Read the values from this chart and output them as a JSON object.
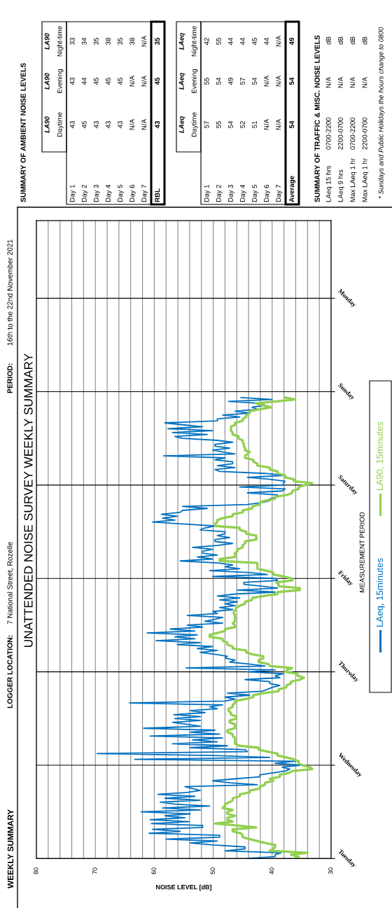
{
  "chart_data": [
    {
      "type": "line",
      "orientation": "horizontal",
      "title": "UNATTENDED NOISE SURVEY WEEKLY SUMMARY",
      "xlabel": "NOISE LEVEL [dB]",
      "ylabel": "MEASUREMENT PERIOD",
      "annotations": [
        "WEEKLY SUMMARY",
        "LOGGER LOCATION:",
        "7 National Street, Rozelle",
        "PERIOD:",
        "16th to the 22nd November 2021"
      ],
      "xlim": [
        80,
        30
      ],
      "xticks": [
        80,
        {
          "value": 78,
          "label": null
        },
        {
          "value": 76,
          "label": null
        },
        {
          "value": 74,
          "label": null
        },
        {
          "value": 72,
          "label": null
        },
        70,
        {
          "value": 68,
          "label": null
        },
        {
          "value": 66,
          "label": null
        },
        {
          "value": 64,
          "label": null
        },
        {
          "value": 62,
          "label": null
        },
        60,
        {
          "value": 58,
          "label": null
        },
        {
          "value": 56,
          "label": null
        },
        {
          "value": 54,
          "label": null
        },
        {
          "value": 52,
          "label": null
        },
        50,
        {
          "value": 48,
          "label": null
        },
        {
          "value": 46,
          "label": null
        },
        {
          "value": 44,
          "label": null
        },
        {
          "value": 42,
          "label": null
        },
        40,
        {
          "value": 38,
          "label": null
        },
        {
          "value": 36,
          "label": null
        },
        {
          "value": 34,
          "label": null
        },
        {
          "value": 32,
          "label": null
        },
        30
      ],
      "categories": [
        null,
        null,
        null,
        null,
        null,
        null,
        null,
        null,
        null,
        null,
        null,
        null,
        null,
        null,
        null,
        null,
        null,
        null,
        null,
        null,
        null,
        null,
        null,
        null,
        null,
        null,
        null,
        null,
        null,
        null,
        null,
        null,
        null,
        null,
        null,
        null,
        null,
        null,
        null,
        null,
        "Monday",
        null,
        null,
        null,
        null,
        null,
        null,
        null,
        null,
        null,
        null,
        null,
        null,
        null,
        null,
        null,
        null,
        null,
        null,
        null,
        null,
        null,
        null,
        null,
        null,
        null,
        null,
        null,
        null,
        null,
        null,
        null,
        null,
        null,
        null,
        null,
        null,
        null,
        null,
        null,
        null,
        null,
        null,
        null,
        null,
        null,
        null,
        null,
        "Sunday",
        null,
        null,
        null,
        null,
        null,
        null,
        null,
        null,
        null,
        null,
        null,
        null,
        null,
        null,
        null,
        null,
        null,
        null,
        null,
        null,
        null,
        null,
        null,
        null,
        null,
        null,
        null,
        null,
        null,
        null,
        null,
        null,
        null,
        null,
        null,
        null,
        null,
        null,
        null,
        null,
        null,
        null,
        null,
        null,
        null,
        null,
        null,
        "Saturday",
        null,
        null,
        null,
        null,
        null,
        null,
        null,
        null,
        null,
        null,
        null,
        null,
        null,
        null,
        null,
        null,
        null,
        null,
        null,
        null,
        null,
        null,
        null,
        null,
        null,
        null,
        null,
        null,
        null,
        null,
        null,
        null,
        null,
        null,
        null,
        null,
        null,
        null,
        null,
        null,
        null,
        null,
        null,
        null,
        null,
        null,
        null,
        "Friday",
        null,
        null,
        null,
        null,
        null,
        null,
        null,
        null,
        null,
        null,
        null,
        null,
        null,
        null,
        null,
        null,
        null,
        null,
        null,
        null,
        null,
        null,
        null,
        null,
        null,
        null,
        null,
        null,
        null,
        null,
        null,
        null,
        null,
        null,
        null,
        null,
        null,
        null,
        null,
        null,
        null,
        null,
        null,
        null,
        null,
        null,
        null,
        "Thursday",
        null,
        null,
        null,
        null,
        null,
        null,
        null,
        null,
        null,
        null,
        null,
        null,
        null,
        null,
        null,
        null,
        null,
        null,
        null,
        null,
        null,
        null,
        null,
        null,
        null,
        null,
        null,
        null,
        null,
        null,
        null,
        null,
        null,
        null,
        null,
        null,
        null,
        null,
        null,
        null,
        null,
        null,
        null,
        null,
        null,
        null,
        null,
        "Wednesday",
        null,
        null,
        null,
        null,
        null,
        null,
        null,
        null,
        null,
        null,
        null,
        null,
        null,
        null,
        null,
        null,
        null,
        null,
        null,
        null,
        null,
        null,
        null,
        null,
        null,
        null,
        null,
        null,
        null,
        null,
        null,
        null,
        null,
        null,
        null,
        null,
        null,
        null,
        null,
        null,
        null,
        null,
        null,
        null,
        null,
        null,
        null,
        "Tuesday"
      ],
      "grid": true,
      "legend": "right",
      "series": [
        {
          "name": "LAeq, 15minutes",
          "color": "#0070c0",
          "values": [
            null,
            null,
            null,
            null,
            null,
            null,
            null,
            null,
            null,
            null,
            null,
            null,
            null,
            null,
            null,
            null,
            null,
            null,
            null,
            null,
            null,
            null,
            null,
            null,
            null,
            null,
            null,
            null,
            null,
            null,
            null,
            null,
            null,
            null,
            null,
            null,
            null,
            null,
            null,
            null,
            null,
            null,
            null,
            null,
            null,
            null,
            null,
            null,
            null,
            null,
            null,
            null,
            null,
            null,
            null,
            null,
            null,
            null,
            null,
            null,
            null,
            null,
            null,
            null,
            null,
            null,
            null,
            null,
            null,
            null,
            null,
            null,
            null,
            null,
            null,
            null,
            null,
            null,
            null,
            null,
            null,
            null,
            null,
            null,
            null,
            null,
            null,
            null,
            null,
            null,
            null,
            45.3,
            40.0,
            47.4,
            42.1,
            41.2,
            43.4,
            42.5,
            46.3,
            43.8,
            48.4,
            45.5,
            49.3,
            49.3,
            58.2,
            55.2,
            51.8,
            57.7,
            50.1,
            56.9,
            51.0,
            56.5,
            55.2,
            49.3,
            46.7,
            49.7,
            49.7,
            47.2,
            50.1,
            48.4,
            46.3,
            58.4,
            48.0,
            49.7,
            46.7,
            46.7,
            49.3,
            46.3,
            49.7,
            48.9,
            41.2,
            37.8,
            44.2,
            40.4,
            37.8,
            38.1,
            38.1,
            45.5,
            37.8,
            38.3,
            44.2,
            39.1,
            39.1,
            40.4,
            40.4,
            41.7,
            44.2,
            55.2,
            51.0,
            55.2,
            55.6,
            58.8,
            56.1,
            58.6,
            56.5,
            60.3,
            55.2,
            49.7,
            51.4,
            52.2,
            48.0,
            48.0,
            49.3,
            47.2,
            49.7,
            49.7,
            46.7,
            49.3,
            53.5,
            50.1,
            51.8,
            51.8,
            49.3,
            52.7,
            50.1,
            55.6,
            49.3,
            46.7,
            48.0,
            45.5,
            50.6,
            43.8,
            40.8,
            50.1,
            39.5,
            39.1,
            44.8,
            44.8,
            41.7,
            39.1,
            45.9,
            39.5,
            46.3,
            49.3,
            45.5,
            48.9,
            45.9,
            48.0,
            46.3,
            48.9,
            46.7,
            50.1,
            49.3,
            54.4,
            48.4,
            49.7,
            51.4,
            48.4,
            54.4,
            51.8,
            57.3,
            53.1,
            61.2,
            52.7,
            56.5,
            53.1,
            59.7,
            52.2,
            56.1,
            50.1,
            52.7,
            49.3,
            52.2,
            49.7,
            47.6,
            48.0,
            46.3,
            47.2,
            43.8,
            41.2,
            54.6,
            39.5,
            44.2,
            38.1,
            39.5,
            38.7,
            44.6,
            40.4,
            40.4,
            38.7,
            40.0,
            40.8,
            41.7,
            47.6,
            43.8,
            48.0,
            46.3,
            48.0,
            64.2,
            48.4,
            50.6,
            49.3,
            53.9,
            51.4,
            56.7,
            52.2,
            56.5,
            52.2,
            56.9,
            54.4,
            52.2,
            61.8,
            49.7,
            53.9,
            48.9,
            60.7,
            48.4,
            53.5,
            49.3,
            56.9,
            47.6,
            53.9,
            44.6,
            44.2,
            69.7,
            50.1,
            40.4,
            63.3,
            36.1,
            39.5,
            35.3,
            38.3,
            37.0,
            37.8,
            40.0,
            42.1,
            42.1,
            46.3,
            50.1,
            47.2,
            42.5,
            54.8,
            53.5,
            52.2,
            54.4,
            59.4,
            53.1,
            58.2,
            52.2,
            59.0,
            56.5,
            50.6,
            58.6,
            52.2,
            62.2,
            53.9,
            58.2,
            54.8,
            60.7,
            54.1,
            60.5,
            51.8,
            51.8,
            60.3,
            55.6,
            60.9,
            48.9,
            48.9,
            58.0,
            49.3,
            53.9,
            50.1,
            44.6,
            44.6,
            48.0,
            38.5,
            39.5,
            39.5,
            44.4
          ]
        },
        {
          "name": "LA90, 15minutes",
          "color": "#92d050",
          "values": [
            null,
            null,
            null,
            null,
            null,
            null,
            null,
            null,
            null,
            null,
            null,
            null,
            null,
            null,
            null,
            null,
            null,
            null,
            null,
            null,
            null,
            null,
            null,
            null,
            null,
            null,
            null,
            null,
            null,
            null,
            null,
            null,
            null,
            null,
            null,
            null,
            null,
            null,
            null,
            null,
            null,
            null,
            null,
            null,
            null,
            null,
            null,
            null,
            null,
            null,
            null,
            null,
            null,
            null,
            null,
            null,
            null,
            null,
            null,
            null,
            null,
            null,
            null,
            null,
            null,
            null,
            null,
            null,
            null,
            null,
            null,
            null,
            null,
            null,
            null,
            null,
            null,
            null,
            null,
            null,
            null,
            null,
            null,
            null,
            null,
            null,
            null,
            null,
            null,
            null,
            null,
            37.8,
            36.1,
            39.3,
            42.7,
            41.5,
            40.2,
            42.1,
            43.8,
            43.8,
            44.4,
            44.4,
            45.0,
            45.0,
            46.3,
            46.3,
            47.0,
            47.0,
            47.0,
            46.7,
            46.7,
            45.7,
            45.7,
            45.0,
            45.0,
            44.8,
            44.8,
            44.6,
            44.6,
            43.8,
            44.2,
            44.6,
            44.6,
            43.2,
            43.2,
            42.5,
            42.5,
            40.4,
            40.4,
            39.1,
            39.1,
            37.8,
            37.8,
            36.3,
            36.3,
            33.2,
            34.4,
            35.5,
            35.5,
            36.6,
            36.6,
            37.4,
            39.5,
            39.5,
            41.2,
            42.1,
            42.1,
            43.4,
            43.4,
            45.0,
            45.0,
            46.7,
            46.7,
            48.4,
            49.3,
            49.3,
            49.7,
            49.7,
            45.5,
            45.5,
            44.4,
            44.4,
            42.7,
            42.7,
            42.7,
            44.6,
            44.6,
            45.0,
            45.0,
            45.9,
            45.9,
            46.3,
            46.3,
            46.3,
            48.9,
            48.9,
            42.5,
            42.5,
            42.5,
            42.5,
            41.0,
            39.8,
            39.8,
            38.1,
            36.6,
            36.6,
            39.3,
            38.9,
            38.9,
            35.3,
            35.3,
            39.1,
            39.1,
            41.5,
            43.4,
            43.4,
            44.6,
            44.6,
            45.5,
            46.1,
            46.1,
            46.5,
            46.5,
            46.3,
            46.3,
            46.3,
            46.3,
            46.7,
            46.3,
            46.3,
            48.0,
            48.0,
            49.3,
            50.6,
            50.6,
            48.4,
            48.4,
            47.6,
            47.6,
            46.7,
            46.7,
            44.4,
            44.4,
            43.4,
            41.5,
            41.5,
            42.3,
            42.3,
            40.6,
            40.4,
            36.6,
            37.4,
            37.8,
            35.7,
            35.7,
            34.6,
            35.3,
            36.8,
            36.8,
            37.6,
            37.6,
            38.9,
            38.9,
            41.5,
            43.2,
            43.2,
            44.6,
            46.3,
            46.3,
            46.7,
            46.7,
            47.4,
            47.4,
            47.0,
            47.0,
            46.1,
            46.1,
            47.2,
            47.2,
            46.3,
            46.3,
            46.3,
            47.6,
            47.6,
            46.7,
            46.7,
            46.3,
            46.3,
            46.3,
            46.3,
            45.5,
            42.3,
            42.3,
            40.8,
            39.1,
            39.1,
            37.6,
            36.3,
            35.5,
            35.5,
            34.9,
            33.6,
            33.2,
            36.6,
            37.2,
            38.7,
            38.7,
            40.4,
            39.8,
            41.2,
            41.2,
            42.1,
            42.1,
            43.8,
            43.8,
            45.5,
            45.5,
            46.7,
            46.7,
            47.2,
            48.0,
            48.0,
            48.4,
            46.7,
            47.6,
            47.6,
            46.3,
            47.6,
            47.6,
            46.7,
            49.7,
            45.9,
            42.7,
            46.7,
            46.7,
            45.3,
            45.0,
            45.0,
            43.8,
            42.5,
            41.2,
            39.5,
            39.5,
            39.8,
            40.4,
            34.0,
            36.8,
            35.5,
            36.1
          ]
        }
      ]
    },
    {
      "type": "other",
      "title": "SUMMARY OF AMBIENT NOISE LEVELS",
      "categories": [
        "LA90\nDaytime",
        "LA90\nEvening",
        "LA90\nNight-time"
      ],
      "y_categories": [
        "Day 1",
        "Day 2",
        "Day 3",
        "Day 4",
        "Day 5",
        "Day 6",
        "Day 7",
        "RBL"
      ],
      "cell_labels": [
        [
          "43",
          "43",
          "33"
        ],
        [
          "45",
          "44",
          "34"
        ],
        [
          "43",
          "45",
          "35"
        ],
        [
          "43",
          "45",
          "38"
        ],
        [
          "43",
          "45",
          "35"
        ],
        [
          "N/A",
          "N/A",
          "38"
        ],
        [
          "N/A",
          "N/A",
          "N/A"
        ],
        [
          "43",
          "45",
          "35"
        ]
      ]
    },
    {
      "type": "other",
      "categories": [
        "LAeq\nDaytime",
        "LAeq\nEvening",
        "LAeq\nNight-time"
      ],
      "y_categories": [
        "Day 1",
        "Day 2",
        "Day 3",
        "Day 4",
        "Day 5",
        "Day 6",
        "Day 7",
        "Average"
      ],
      "cell_labels": [
        [
          "57",
          "55",
          "42"
        ],
        [
          "55",
          "54",
          "55"
        ],
        [
          "54",
          "49",
          "44"
        ],
        [
          "52",
          "57",
          "44"
        ],
        [
          "51",
          "54",
          "45"
        ],
        [
          "N/A",
          "N/A",
          "44"
        ],
        [
          "N/A",
          "N/A",
          "N/A"
        ],
        [
          "54",
          "54",
          "49"
        ]
      ]
    },
    {
      "type": "other",
      "title": "SUMMARY OF TRAFFIC & MISC. NOISE LEVELS",
      "y_categories": [
        "LAeq 15 hrs",
        "LAeq 9 hrs",
        "Max LAeq 1 hr",
        "Max LAeq 1 hr"
      ],
      "cell_labels": [
        [
          "0700-2200",
          "N/A",
          "dB"
        ],
        [
          "2200-0700",
          "N/A",
          "dB"
        ],
        [
          "0700-2200",
          "N/A",
          "dB"
        ],
        [
          "2200-0700",
          "N/A",
          "dB"
        ]
      ],
      "annotations": [
        "* Sundays and Public Holidays the hours change to 0800"
      ]
    }
  ]
}
